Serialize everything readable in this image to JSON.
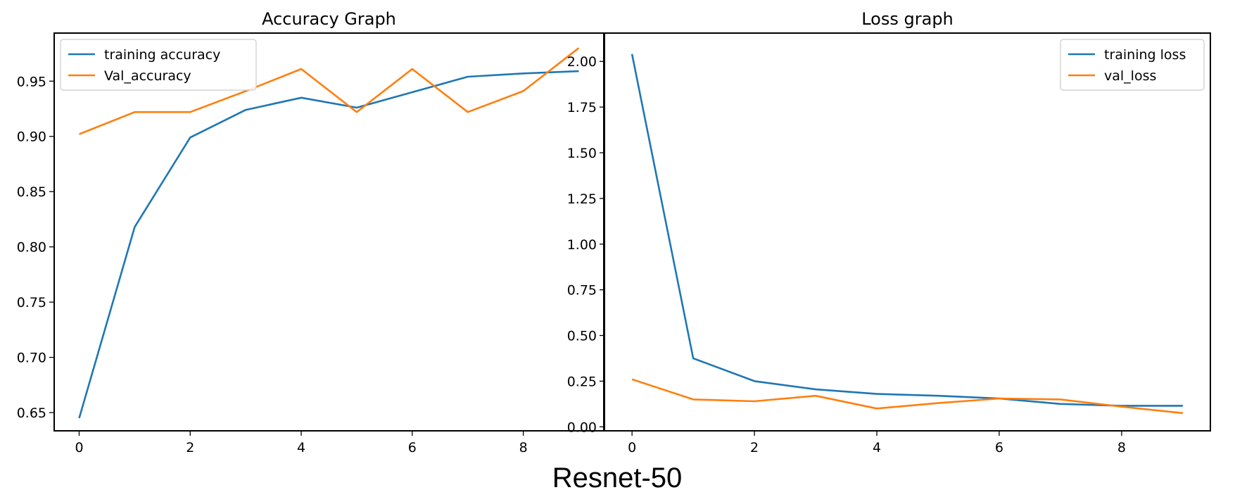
{
  "figure_caption": "Resnet-50",
  "chart_data": [
    {
      "type": "line",
      "title": "Accuracy Graph",
      "xlabel": "",
      "ylabel": "",
      "x": [
        0,
        1,
        2,
        3,
        4,
        5,
        6,
        7,
        8,
        9
      ],
      "xlim": [
        -0.45,
        9.45
      ],
      "ylim": [
        0.6335,
        0.9935
      ],
      "x_ticks": [
        0,
        2,
        4,
        6,
        8
      ],
      "y_ticks": [
        0.65,
        0.7,
        0.75,
        0.8,
        0.85,
        0.9,
        0.95
      ],
      "y_tick_labels": [
        "0.65",
        "0.70",
        "0.75",
        "0.80",
        "0.85",
        "0.90",
        "0.95"
      ],
      "grid": false,
      "legend_position": "top-left",
      "series": [
        {
          "name": "training accuracy",
          "color": "#1f77b4",
          "values": [
            0.645,
            0.818,
            0.899,
            0.924,
            0.935,
            0.926,
            0.94,
            0.954,
            0.957,
            0.959
          ]
        },
        {
          "name": "Val_accuracy",
          "color": "#ff7f0e",
          "values": [
            0.902,
            0.922,
            0.922,
            0.941,
            0.961,
            0.922,
            0.961,
            0.922,
            0.941,
            0.98
          ]
        }
      ]
    },
    {
      "type": "line",
      "title": "Loss graph",
      "xlabel": "",
      "ylabel": "",
      "x": [
        0,
        1,
        2,
        3,
        4,
        5,
        6,
        7,
        8,
        9
      ],
      "xlim": [
        -0.45,
        9.45
      ],
      "ylim": [
        -0.022,
        2.155
      ],
      "x_ticks": [
        0,
        2,
        4,
        6,
        8
      ],
      "y_ticks": [
        0.0,
        0.25,
        0.5,
        0.75,
        1.0,
        1.25,
        1.5,
        1.75,
        2.0
      ],
      "y_tick_labels": [
        "0.00",
        "0.25",
        "0.50",
        "0.75",
        "1.00",
        "1.25",
        "1.50",
        "1.75",
        "2.00"
      ],
      "grid": false,
      "legend_position": "top-right",
      "series": [
        {
          "name": "training loss",
          "color": "#1f77b4",
          "values": [
            2.04,
            0.375,
            0.25,
            0.205,
            0.18,
            0.17,
            0.155,
            0.125,
            0.115,
            0.115
          ]
        },
        {
          "name": "val_loss",
          "color": "#ff7f0e",
          "values": [
            0.26,
            0.15,
            0.14,
            0.17,
            0.1,
            0.13,
            0.155,
            0.15,
            0.11,
            0.075
          ]
        }
      ]
    }
  ]
}
